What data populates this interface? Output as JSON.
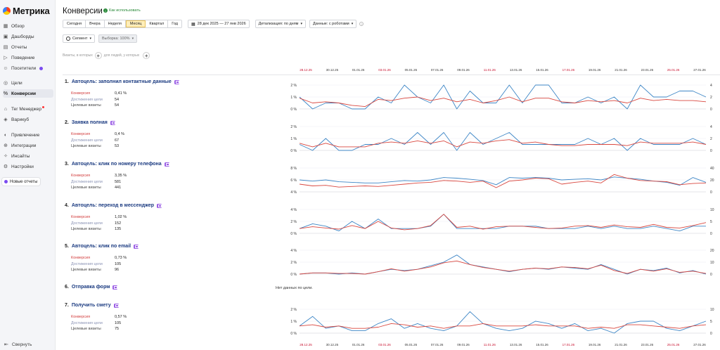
{
  "app": {
    "logo": "Метрика"
  },
  "sidebar": {
    "items": [
      {
        "label": "Обзор",
        "icon": "grid-icon"
      },
      {
        "label": "Дашборды",
        "icon": "dashboard-icon"
      },
      {
        "label": "Отчеты",
        "icon": "reports-icon"
      },
      {
        "label": "Поведение",
        "icon": "play-icon"
      },
      {
        "label": "Посетители",
        "icon": "user-icon"
      },
      {
        "label": "Цели",
        "icon": "target-icon"
      },
      {
        "label": "Конверсии",
        "icon": "percent-icon"
      },
      {
        "label": "Тег Менеджер",
        "icon": "tag-icon"
      },
      {
        "label": "Варикуб",
        "icon": "cube-icon"
      },
      {
        "label": "Привлечение",
        "icon": "megaphone-icon"
      },
      {
        "label": "Интеграции",
        "icon": "plug-icon"
      },
      {
        "label": "Инсайты",
        "icon": "bulb-icon"
      },
      {
        "label": "Настройки",
        "icon": "gear-icon"
      }
    ],
    "new_reports": "Новые отчеты",
    "collapse": "Свернуть"
  },
  "header": {
    "title": "Конверсии",
    "howto": "Как использовать"
  },
  "toolbar": {
    "periods": [
      "Сегодня",
      "Вчера",
      "Неделя",
      "Месяц",
      "Квартал",
      "Год"
    ],
    "selected_period": "Месяц",
    "date_range": "28 дек 2025 — 27 янв 2026",
    "detail": "Детализация: по дням",
    "robots": "Данные: с роботами"
  },
  "toolbar2": {
    "segment": "Сегмент",
    "sample": "Выборка: 100%"
  },
  "filters": {
    "visits_label": "Визиты, в которых",
    "people_label": "для людей, у которых"
  },
  "date_axis": {
    "labels": [
      "28.12.25",
      "30.12.25",
      "01.01.26",
      "03.01.26",
      "05.01.26",
      "07.01.26",
      "09.01.26",
      "11.01.26",
      "13.01.26",
      "15.01.26",
      "17.01.26",
      "19.01.26",
      "21.01.26",
      "23.01.26",
      "25.01.26",
      "27.01.26"
    ],
    "red": [
      true,
      false,
      false,
      true,
      false,
      false,
      false,
      true,
      false,
      false,
      true,
      false,
      false,
      false,
      true,
      false
    ]
  },
  "metric_labels": {
    "conv": "Конверсия",
    "reach": "Достижения цели",
    "visits": "Целевые визиты"
  },
  "colors": {
    "conversion": "#d9473f",
    "reaches": "#3d86c6",
    "title": "#1a3a80"
  },
  "no_data": "Нет данных по цели.",
  "goals": [
    {
      "num": "1.",
      "title": "Автоцель: заполнил контактные данные",
      "conv": "0,41 %",
      "reach": "54",
      "visits": "54",
      "left_ticks": [
        "2 %",
        "1 %",
        "0 %"
      ],
      "right_ticks": [
        "4",
        "2",
        "0"
      ]
    },
    {
      "num": "2.",
      "title": "Заявка полная",
      "conv": "0,4 %",
      "reach": "67",
      "visits": "53",
      "left_ticks": [
        "2 %",
        "1 %",
        "0 %"
      ],
      "right_ticks": [
        "4",
        "2",
        "0"
      ]
    },
    {
      "num": "3.",
      "title": "Автоцель: клик по номеру телефона",
      "conv": "3,35 %",
      "reach": "581",
      "visits": "441",
      "left_ticks": [
        "8 %",
        "6 %",
        "4 %"
      ],
      "right_ticks": [
        "40",
        "20",
        "0"
      ]
    },
    {
      "num": "4.",
      "title": "Автоцель: переход в мессенджер",
      "conv": "1,02 %",
      "reach": "152",
      "visits": "135",
      "left_ticks": [
        "4 %",
        "2 %",
        "0 %"
      ],
      "right_ticks": [
        "10",
        "5",
        "0"
      ]
    },
    {
      "num": "5.",
      "title": "Автоцель: клик по email",
      "conv": "0,73 %",
      "reach": "105",
      "visits": "96",
      "left_ticks": [
        "4 %",
        "2 %",
        "0 %"
      ],
      "right_ticks": [
        "20",
        "10",
        "0"
      ]
    },
    {
      "num": "6.",
      "title": "Отправка форм"
    },
    {
      "num": "7.",
      "title": "Получить смету",
      "conv": "0,57 %",
      "reach": "105",
      "visits": "75",
      "left_ticks": [
        "2 %",
        "1 %",
        "0 %"
      ],
      "right_ticks": [
        "10",
        "5",
        "0"
      ]
    }
  ],
  "chart_data": [
    {
      "type": "line",
      "goal": "Автоцель: заполнил контактные данные",
      "ylim_left": [
        0,
        2
      ],
      "ylim_right": [
        0,
        4
      ],
      "series": [
        {
          "axis": "left",
          "values": [
            0.9,
            0.5,
            0.6,
            0.5,
            0.3,
            0.2,
            0.8,
            0.7,
            0.9,
            1.0,
            0.7,
            0.9,
            0.6,
            0.8,
            0.5,
            0.7,
            1.0,
            0.6,
            0.9,
            0.9,
            0.6,
            0.5,
            0.7,
            0.6,
            0.7,
            0.5,
            0.9,
            0.7,
            0.8,
            0.7,
            0.7,
            0.6
          ]
        },
        {
          "axis": "right",
          "values": [
            2,
            0,
            1,
            1,
            0,
            0,
            2,
            1,
            4,
            2,
            1,
            4,
            0,
            3,
            1,
            1,
            4,
            1,
            4,
            4,
            1,
            1,
            2,
            1,
            2,
            0,
            4,
            2,
            2,
            3,
            3,
            2
          ]
        }
      ]
    },
    {
      "type": "line",
      "goal": "Заявка полная",
      "ylim_left": [
        0,
        2
      ],
      "ylim_right": [
        0,
        4
      ],
      "series": [
        {
          "axis": "left",
          "values": [
            0.6,
            0.3,
            0.6,
            0.3,
            0.3,
            0.3,
            0.6,
            0.7,
            0.6,
            0.8,
            0.6,
            0.8,
            0.3,
            0.7,
            0.6,
            0.8,
            0.9,
            0.6,
            0.7,
            0.5,
            0.4,
            0.4,
            0.5,
            0.5,
            0.5,
            0.4,
            0.7,
            0.6,
            0.6,
            0.6,
            0.7,
            0.5
          ]
        },
        {
          "axis": "right",
          "values": [
            1,
            0,
            2,
            0,
            0,
            1,
            1,
            2,
            1,
            3,
            1,
            3,
            0,
            3,
            1,
            2,
            3,
            1,
            1,
            1,
            1,
            1,
            2,
            1,
            2,
            0,
            2,
            1,
            1,
            1,
            2,
            1
          ]
        }
      ]
    },
    {
      "type": "line",
      "goal": "Автоцель: клик по номеру телефона",
      "ylim_left": [
        4,
        8
      ],
      "ylim_right": [
        0,
        40
      ],
      "series": [
        {
          "axis": "left",
          "values": [
            5.3,
            5.0,
            5.1,
            4.8,
            4.9,
            5.0,
            4.9,
            5.1,
            5.3,
            5.5,
            5.6,
            5.9,
            5.8,
            5.6,
            5.8,
            4.7,
            5.8,
            6.0,
            6.3,
            6.2,
            5.3,
            5.6,
            5.8,
            5.5,
            6.9,
            6.3,
            5.9,
            5.8,
            5.7,
            5.2,
            5.4,
            5.5
          ]
        },
        {
          "axis": "right",
          "values": [
            20,
            18,
            20,
            17,
            16,
            15,
            15,
            17,
            19,
            18,
            20,
            24,
            23,
            21,
            19,
            12,
            24,
            23,
            24,
            23,
            20,
            21,
            22,
            20,
            25,
            23,
            21,
            18,
            16,
            11,
            24,
            16
          ]
        }
      ]
    },
    {
      "type": "line",
      "goal": "Автоцель: переход в мессенджер",
      "ylim_left": [
        0,
        4
      ],
      "ylim_right": [
        0,
        10
      ],
      "series": [
        {
          "axis": "left",
          "values": [
            0.8,
            1.1,
            0.9,
            0.7,
            1.3,
            0.8,
            2.0,
            0.9,
            0.6,
            0.8,
            1.3,
            3.2,
            1.0,
            1.2,
            0.7,
            1.1,
            1.2,
            1.2,
            1.0,
            0.8,
            0.9,
            1.2,
            1.3,
            1.0,
            1.4,
            1.1,
            1.0,
            1.5,
            1.0,
            0.9,
            1.3,
            1.8
          ]
        },
        {
          "axis": "right",
          "values": [
            2,
            4,
            3,
            1,
            5,
            2,
            6,
            2,
            2,
            2,
            3,
            8,
            2,
            2,
            2,
            2,
            3,
            3,
            3,
            2,
            2,
            2,
            3,
            2,
            3,
            2,
            2,
            3,
            2,
            1,
            3,
            3
          ]
        }
      ]
    },
    {
      "type": "line",
      "goal": "Автоцель: клик по email",
      "ylim_left": [
        0,
        4
      ],
      "ylim_right": [
        0,
        20
      ],
      "series": [
        {
          "axis": "left",
          "values": [
            0.0,
            0.2,
            0.2,
            0.1,
            0.1,
            0.0,
            0.4,
            0.9,
            0.5,
            0.8,
            1.2,
            1.9,
            2.2,
            1.6,
            1.1,
            0.8,
            0.5,
            0.8,
            1.0,
            0.9,
            1.2,
            1.1,
            0.9,
            1.5,
            0.6,
            0.1,
            0.8,
            0.5,
            0.9,
            0.3,
            0.5,
            0.1
          ]
        },
        {
          "axis": "right",
          "values": [
            0,
            1,
            1,
            0,
            1,
            0,
            2,
            4,
            3,
            4,
            7,
            10,
            16,
            8,
            6,
            4,
            2,
            4,
            5,
            4,
            6,
            5,
            4,
            8,
            4,
            0,
            4,
            3,
            5,
            1,
            3,
            0
          ]
        }
      ]
    },
    {
      "type": "line",
      "goal": "Получить смету",
      "ylim_left": [
        0,
        2
      ],
      "ylim_right": [
        0,
        10
      ],
      "series": [
        {
          "axis": "left",
          "values": [
            0.6,
            0.7,
            0.5,
            0.6,
            0.4,
            0.4,
            0.5,
            0.8,
            0.7,
            0.5,
            0.6,
            0.4,
            0.6,
            0.6,
            0.8,
            0.6,
            0.6,
            0.6,
            0.7,
            0.6,
            0.6,
            0.6,
            0.4,
            0.5,
            0.4,
            0.7,
            0.7,
            0.6,
            0.5,
            0.4,
            0.6,
            0.7
          ]
        },
        {
          "axis": "right",
          "values": [
            3,
            7,
            2,
            3,
            1,
            1,
            4,
            6,
            2,
            4,
            2,
            1,
            3,
            9,
            4,
            2,
            1,
            2,
            5,
            4,
            2,
            4,
            1,
            2,
            0,
            4,
            5,
            5,
            2,
            1,
            3,
            5
          ]
        }
      ]
    }
  ]
}
